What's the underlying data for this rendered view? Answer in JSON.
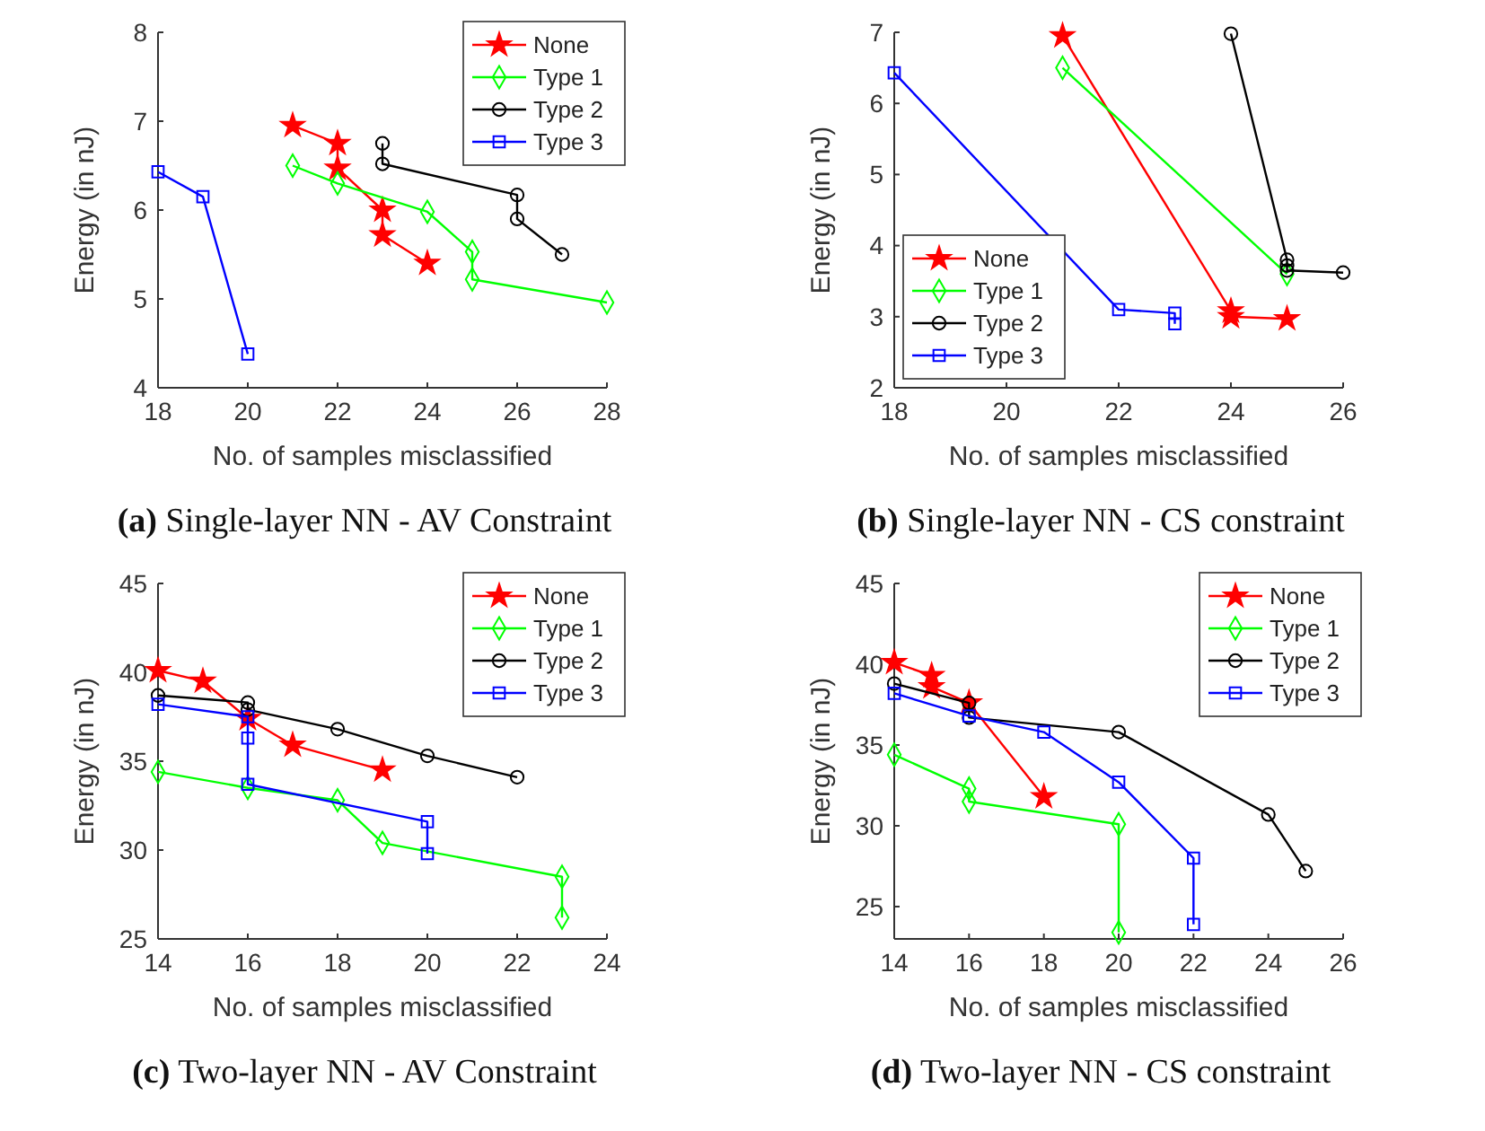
{
  "chart_data": [
    {
      "type": "line",
      "title": "(a) Single-layer NN - AV Constraint",
      "xlabel": "No. of samples misclassified",
      "ylabel": "Energy (in nJ)",
      "xlim": [
        18,
        28
      ],
      "xticks": [
        18,
        20,
        22,
        24,
        26,
        28
      ],
      "ylim": [
        4,
        8
      ],
      "yticks": [
        4,
        5,
        6,
        7,
        8
      ],
      "legend": "top right",
      "line_style": "solid",
      "series": [
        {
          "name": "None",
          "color": "#ff0000",
          "marker": "star",
          "x": [
            21,
            22,
            22,
            23,
            23,
            24
          ],
          "values": [
            6.95,
            6.75,
            6.47,
            6.0,
            5.72,
            5.4
          ]
        },
        {
          "name": "Type 1",
          "color": "#00ff00",
          "marker": "diamond",
          "x": [
            21,
            22,
            24,
            25,
            25,
            28
          ],
          "values": [
            6.5,
            6.3,
            5.98,
            5.53,
            5.22,
            4.96
          ]
        },
        {
          "name": "Type 2",
          "color": "#000000",
          "marker": "circle",
          "x": [
            23,
            23,
            26,
            26,
            27
          ],
          "values": [
            6.75,
            6.52,
            6.17,
            5.9,
            5.5
          ]
        },
        {
          "name": "Type 3",
          "color": "#0000ff",
          "marker": "square",
          "x": [
            18,
            19,
            20
          ],
          "values": [
            6.43,
            6.15,
            4.38
          ]
        }
      ]
    },
    {
      "type": "line",
      "title": "(b) Single-layer NN - CS constraint",
      "xlabel": "No. of samples misclassified",
      "ylabel": "Energy (in nJ)",
      "xlim": [
        18,
        26
      ],
      "xticks": [
        18,
        20,
        22,
        24,
        26
      ],
      "ylim": [
        2,
        7
      ],
      "yticks": [
        2,
        3,
        4,
        5,
        6,
        7
      ],
      "legend": "bottom left",
      "line_style": "solid",
      "series": [
        {
          "name": "None",
          "color": "#ff0000",
          "marker": "star",
          "x": [
            21,
            24,
            24,
            25
          ],
          "values": [
            6.95,
            3.08,
            3.0,
            2.97
          ]
        },
        {
          "name": "Type 1",
          "color": "#00ff00",
          "marker": "diamond",
          "x": [
            21,
            25
          ],
          "values": [
            6.5,
            3.6
          ]
        },
        {
          "name": "Type 2",
          "color": "#000000",
          "marker": "circle",
          "x": [
            24,
            25,
            25,
            25,
            26
          ],
          "values": [
            6.98,
            3.8,
            3.72,
            3.65,
            3.62
          ]
        },
        {
          "name": "Type 3",
          "color": "#0000ff",
          "marker": "square",
          "x": [
            18,
            22,
            23,
            23
          ],
          "values": [
            6.43,
            3.1,
            3.05,
            2.9
          ]
        }
      ]
    },
    {
      "type": "line",
      "title": "(c) Two-layer NN - AV Constraint",
      "xlabel": "No. of samples misclassified",
      "ylabel": "Energy (in nJ)",
      "xlim": [
        14,
        24
      ],
      "xticks": [
        14,
        16,
        18,
        20,
        22,
        24
      ],
      "ylim": [
        25,
        45
      ],
      "yticks": [
        25,
        30,
        35,
        40,
        45
      ],
      "legend": "top right",
      "line_style": "solid",
      "series": [
        {
          "name": "None",
          "color": "#ff0000",
          "marker": "star",
          "x": [
            14,
            15,
            16,
            17,
            19
          ],
          "values": [
            40.1,
            39.5,
            37.4,
            35.9,
            34.5
          ]
        },
        {
          "name": "Type 1",
          "color": "#00ff00",
          "marker": "diamond",
          "x": [
            14,
            16,
            18,
            19,
            23,
            23
          ],
          "values": [
            34.4,
            33.5,
            32.8,
            30.4,
            28.5,
            26.2
          ]
        },
        {
          "name": "Type 2",
          "color": "#000000",
          "marker": "circle",
          "x": [
            14,
            16,
            16,
            18,
            20,
            22
          ],
          "values": [
            38.7,
            38.3,
            37.9,
            36.8,
            35.3,
            34.1
          ]
        },
        {
          "name": "Type 3",
          "color": "#0000ff",
          "marker": "square",
          "x": [
            14,
            16,
            16,
            16,
            20,
            20
          ],
          "values": [
            38.2,
            37.5,
            36.3,
            33.7,
            31.6,
            29.8
          ]
        }
      ]
    },
    {
      "type": "line",
      "title": "(d) Two-layer NN - CS constraint",
      "xlabel": "No. of samples misclassified",
      "ylabel": "Energy (in nJ)",
      "xlim": [
        14,
        26
      ],
      "xticks": [
        14,
        16,
        18,
        20,
        22,
        24,
        26
      ],
      "ylim": [
        23,
        45
      ],
      "yticks": [
        25,
        30,
        35,
        40,
        45
      ],
      "legend": "top right",
      "line_style": "solid",
      "series": [
        {
          "name": "None",
          "color": "#ff0000",
          "marker": "star",
          "x": [
            14,
            15,
            15,
            16,
            18
          ],
          "values": [
            40.1,
            39.3,
            38.6,
            37.6,
            31.8
          ]
        },
        {
          "name": "Type 1",
          "color": "#00ff00",
          "marker": "diamond",
          "x": [
            14,
            16,
            16,
            20,
            20
          ],
          "values": [
            34.4,
            32.3,
            31.5,
            30.1,
            23.4
          ]
        },
        {
          "name": "Type 2",
          "color": "#000000",
          "marker": "circle",
          "x": [
            14,
            16,
            16,
            20,
            24,
            25
          ],
          "values": [
            38.8,
            37.6,
            36.7,
            35.8,
            30.7,
            27.2
          ]
        },
        {
          "name": "Type 3",
          "color": "#0000ff",
          "marker": "square",
          "x": [
            14,
            16,
            18,
            20,
            22,
            22
          ],
          "values": [
            38.2,
            36.8,
            35.8,
            32.7,
            28,
            23.9
          ]
        }
      ]
    }
  ]
}
